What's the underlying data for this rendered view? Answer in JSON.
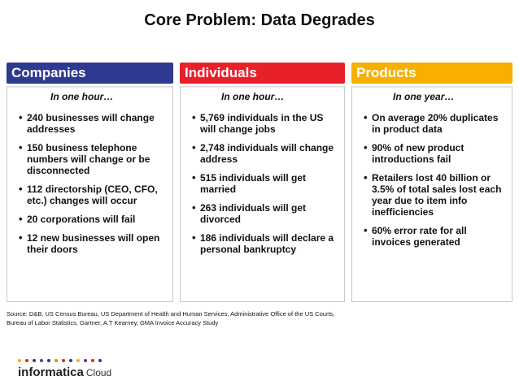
{
  "title": "Core Problem: Data Degrades",
  "columns": {
    "companies": {
      "header": "Companies",
      "color": "#2e3a90",
      "subhead": "In one hour…",
      "items": [
        "240 businesses will change addresses",
        "150 business telephone numbers will change or be disconnected",
        "112 directorship (CEO, CFO, etc.) changes will occur",
        "20 corporations will fail",
        "12 new businesses will open their doors"
      ]
    },
    "individuals": {
      "header": "Individuals",
      "color": "#e8202a",
      "subhead": "In one hour…",
      "items": [
        "5,769 individuals in the US will change jobs",
        "2,748 individuals will change address",
        "515 individuals will get married",
        "263 individuals will get divorced",
        "186 individuals will declare a personal bankruptcy"
      ]
    },
    "products": {
      "header": "Products",
      "color": "#f7b000",
      "subhead": "In one year…",
      "items": [
        "On average 20% duplicates in product data",
        "90% of new product introductions fail",
        "Retailers lost 40 billion or 3.5% of total sales lost each year due to item info inefficiencies",
        "60% error rate for all invoices generated"
      ]
    }
  },
  "source": {
    "line1": "Source: D&B, US Census Bureau, US Department of Health and Human Services, Administrative Office of the US Courts,",
    "line2": "Bureau of Labor Statistics, Gartner, A.T Kearney, GMA Invoice Accuracy Study"
  },
  "logo": {
    "name": "informatica",
    "suffix": "Cloud",
    "dot_colors": [
      "#f7b000",
      "#e8202a",
      "#2e3a90",
      "#7a2f8f",
      "#2e3a90",
      "#f08a00",
      "#e8202a",
      "#2e3a90",
      "#f7b000",
      "#7a2f8f",
      "#e8202a",
      "#2e3a90"
    ]
  }
}
